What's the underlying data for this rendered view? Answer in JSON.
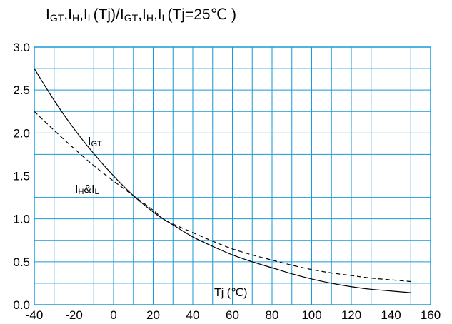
{
  "chart_data": {
    "type": "line",
    "title_parts": [
      "I",
      "GT",
      ",I",
      "H",
      ",I",
      "L",
      "(Tj)/I",
      "GT",
      ",I",
      "H",
      ",I",
      "L",
      "(Tj=25℃ )"
    ],
    "xlabel": "",
    "ylabel": "",
    "xlim": [
      -40,
      160
    ],
    "ylim": [
      0,
      3.0
    ],
    "x_ticks": [
      -40,
      -20,
      0,
      20,
      40,
      60,
      80,
      100,
      120,
      140,
      160
    ],
    "y_ticks": [
      0.0,
      0.5,
      1.0,
      1.5,
      2.0,
      2.5,
      3.0
    ],
    "x_tick_labels": [
      "-40",
      "-20",
      "0",
      "20",
      "40",
      "60",
      "80",
      "100",
      "120",
      "140",
      "160"
    ],
    "y_tick_labels": [
      "0.0",
      "0.5",
      "1.0",
      "1.5",
      "2.0",
      "2.5",
      "3.0"
    ],
    "x_minor_step": 10,
    "y_minor_step": 0.25,
    "grid": true,
    "grid_color": "#1a9ad6",
    "series": [
      {
        "name": "IGT",
        "label_main": "I",
        "label_sub": "GT",
        "style": "solid",
        "color": "#000000",
        "x": [
          -40,
          -30,
          -20,
          -10,
          0,
          10,
          20,
          25,
          30,
          40,
          50,
          60,
          70,
          80,
          90,
          100,
          110,
          120,
          130,
          140,
          150
        ],
        "y": [
          2.75,
          2.38,
          2.05,
          1.76,
          1.5,
          1.27,
          1.08,
          1.0,
          0.93,
          0.79,
          0.68,
          0.58,
          0.5,
          0.43,
          0.36,
          0.3,
          0.25,
          0.21,
          0.18,
          0.16,
          0.14
        ]
      },
      {
        "name": "IH&IL",
        "label_main": "I",
        "label_sub": "H",
        "label_mid": "&I",
        "label_sub2": "L",
        "style": "dashed",
        "color": "#000000",
        "x": [
          -40,
          -30,
          -20,
          -10,
          0,
          10,
          20,
          25,
          30,
          40,
          50,
          60,
          70,
          80,
          90,
          100,
          110,
          120,
          130,
          140,
          150
        ],
        "y": [
          2.25,
          2.03,
          1.82,
          1.62,
          1.44,
          1.27,
          1.1,
          1.0,
          0.94,
          0.84,
          0.74,
          0.65,
          0.58,
          0.52,
          0.46,
          0.41,
          0.37,
          0.34,
          0.31,
          0.29,
          0.27
        ]
      }
    ],
    "annotation_x_unit": "Tj (℃)"
  }
}
